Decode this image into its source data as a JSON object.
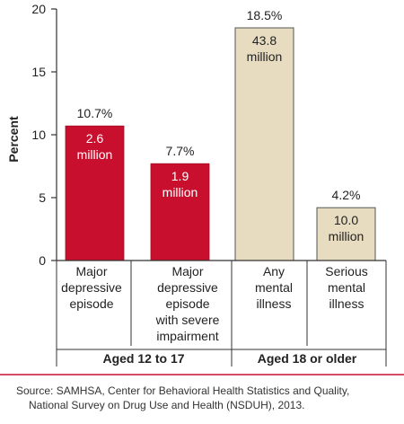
{
  "chart_data": {
    "type": "bar",
    "ylabel": "Percent",
    "ylim": [
      0,
      20
    ],
    "yticks": [
      0,
      5,
      10,
      15,
      20
    ],
    "grid": false,
    "categories": [
      [
        "Major",
        "depressive",
        "episode"
      ],
      [
        "Major",
        "depressive",
        "episode",
        "with severe",
        "impairment"
      ],
      [
        "Any",
        "mental",
        "illness"
      ],
      [
        "Serious",
        "mental",
        "illness"
      ]
    ],
    "values": [
      10.7,
      7.7,
      18.5,
      4.2
    ],
    "value_labels": [
      "10.7%",
      "7.7%",
      "18.5%",
      "4.2%"
    ],
    "count_labels": [
      [
        "2.6",
        "million"
      ],
      [
        "1.9",
        "million"
      ],
      [
        "43.8",
        "million"
      ],
      [
        "10.0",
        "million"
      ]
    ],
    "groups": [
      {
        "label": "Aged 12 to 17",
        "bars": [
          0,
          1
        ]
      },
      {
        "label": "Aged 18 or older",
        "bars": [
          2,
          3
        ]
      }
    ],
    "colors": {
      "aged_12_to_17": "#c8102e",
      "aged_18_or_older": "#e8dcc0",
      "divider": "#c8102e",
      "axis": "#333333"
    }
  },
  "source": [
    "Source: SAMHSA, Center for Behavioral Health Statistics and Quality,",
    "National Survey on Drug Use and Health (NSDUH), 2013."
  ]
}
